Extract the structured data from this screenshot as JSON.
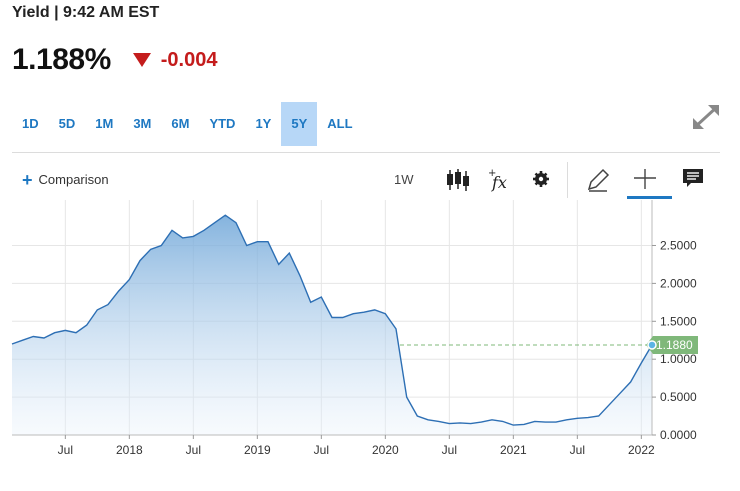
{
  "header": {
    "title": "Yield | 9:42 AM EST",
    "price": "1.188%",
    "change": "-0.004"
  },
  "ranges": [
    {
      "label": "1D"
    },
    {
      "label": "5D"
    },
    {
      "label": "1M"
    },
    {
      "label": "3M"
    },
    {
      "label": "6M"
    },
    {
      "label": "YTD"
    },
    {
      "label": "1Y"
    },
    {
      "label": "5Y",
      "active": true
    },
    {
      "label": "ALL"
    }
  ],
  "toolbar": {
    "comparison_label": "Comparison",
    "interval_label": "1W",
    "tools": [
      "candlestick-icon",
      "fx-icon",
      "gear-icon",
      "pencil-icon",
      "crosshair-icon",
      "comment-icon"
    ]
  },
  "colors": {
    "accent": "#1e78c2",
    "down": "#c41c1c",
    "line": "#2d6fb4",
    "last_badge": "#7fb87a",
    "active_tab": "#b7d7f7"
  },
  "chart_data": {
    "type": "area",
    "y_ticks": [
      "2.5000",
      "2.0000",
      "1.5000",
      "1.0000",
      "0.5000",
      "0.0000"
    ],
    "x_ticks": [
      "Jul",
      "2018",
      "Jul",
      "2019",
      "Jul",
      "2020",
      "Jul",
      "2021",
      "Jul",
      "2022"
    ],
    "last_value_label": "1.1880",
    "last_value": 1.188,
    "ylim": [
      0,
      3.1
    ],
    "grid": true,
    "x": [
      "2017-02",
      "2017-03",
      "2017-04",
      "2017-05",
      "2017-06",
      "2017-07",
      "2017-08",
      "2017-09",
      "2017-10",
      "2017-11",
      "2017-12",
      "2018-01",
      "2018-02",
      "2018-03",
      "2018-04",
      "2018-05",
      "2018-06",
      "2018-07",
      "2018-08",
      "2018-09",
      "2018-10",
      "2018-11",
      "2018-12",
      "2019-01",
      "2019-02",
      "2019-03",
      "2019-04",
      "2019-05",
      "2019-06",
      "2019-07",
      "2019-08",
      "2019-09",
      "2019-10",
      "2019-11",
      "2019-12",
      "2020-01",
      "2020-02",
      "2020-03",
      "2020-04",
      "2020-05",
      "2020-06",
      "2020-07",
      "2020-08",
      "2020-09",
      "2020-10",
      "2020-11",
      "2020-12",
      "2021-01",
      "2021-02",
      "2021-03",
      "2021-04",
      "2021-05",
      "2021-06",
      "2021-07",
      "2021-08",
      "2021-09",
      "2021-10",
      "2021-11",
      "2021-12",
      "2022-01",
      "2022-02"
    ],
    "values": [
      1.2,
      1.25,
      1.3,
      1.28,
      1.35,
      1.38,
      1.35,
      1.45,
      1.65,
      1.72,
      1.9,
      2.05,
      2.3,
      2.45,
      2.5,
      2.7,
      2.6,
      2.62,
      2.7,
      2.8,
      2.9,
      2.8,
      2.5,
      2.55,
      2.55,
      2.25,
      2.4,
      2.1,
      1.75,
      1.82,
      1.55,
      1.55,
      1.6,
      1.62,
      1.65,
      1.6,
      1.4,
      0.5,
      0.25,
      0.2,
      0.18,
      0.15,
      0.16,
      0.15,
      0.17,
      0.2,
      0.18,
      0.13,
      0.14,
      0.18,
      0.17,
      0.17,
      0.2,
      0.22,
      0.23,
      0.25,
      0.4,
      0.55,
      0.7,
      0.95,
      1.188
    ]
  }
}
